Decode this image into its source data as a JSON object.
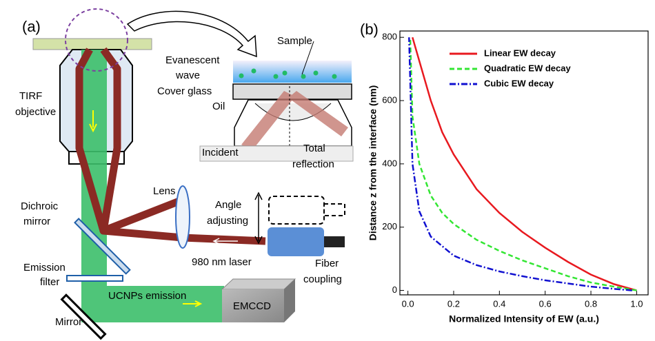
{
  "diagram": {
    "panel_label": "(a)",
    "labels": [
      "Sample",
      "Evanescent",
      "wave",
      "Cover glass",
      "Oil",
      "TIRF",
      "objective",
      "Incident",
      "Total",
      "reflection",
      "Lens",
      "Angle",
      "adjusting",
      "Dichroic",
      "mirror",
      "980 nm laser",
      "Fiber",
      "coupling",
      "Emission",
      "filter",
      "UCNPs emission",
      "EMCCD",
      "Mirror"
    ]
  },
  "chart_data": {
    "type": "line",
    "panel_label": "(b)",
    "x_label": "Normalized Intensity of EW (a.u.)",
    "y_label": "Distance z from the interface  (nm)",
    "xlim": [
      -0.035,
      1.05
    ],
    "ylim": [
      -14,
      820
    ],
    "xticks": [
      {
        "value": 0,
        "label": "0.0"
      },
      0.2,
      0.4,
      0.6,
      0.8,
      {
        "value": 1,
        "label": "1.0"
      }
    ],
    "yticks": [
      0,
      200,
      400,
      600,
      800
    ],
    "legend": "upper center",
    "series": [
      {
        "name": "Linear EW decay",
        "color": "#e8191f",
        "dash": "solid",
        "x": [
          1.0,
          0.9,
          0.8,
          0.7,
          0.6,
          0.5,
          0.4,
          0.3,
          0.2,
          0.15,
          0.1,
          0.06,
          0.02
        ],
        "values": [
          0,
          20,
          50,
          90,
          135,
          185,
          245,
          320,
          430,
          500,
          600,
          700,
          800
        ]
      },
      {
        "name": "Quadratic EW decay",
        "color": "#33e633",
        "dash": "dashed",
        "x": [
          1.0,
          0.9,
          0.8,
          0.7,
          0.6,
          0.5,
          0.4,
          0.3,
          0.2,
          0.15,
          0.1,
          0.05,
          0.02,
          0.01
        ],
        "values": [
          0,
          12,
          25,
          45,
          70,
          95,
          125,
          160,
          210,
          245,
          300,
          400,
          550,
          800
        ]
      },
      {
        "name": "Cubic EW decay",
        "color": "#1010d0",
        "dash": "dashdot",
        "x": [
          0.98,
          0.9,
          0.8,
          0.7,
          0.6,
          0.5,
          0.4,
          0.3,
          0.2,
          0.1,
          0.05,
          0.02,
          0.005
        ],
        "values": [
          0,
          5,
          12,
          22,
          32,
          45,
          60,
          80,
          110,
          170,
          250,
          400,
          800
        ]
      }
    ]
  }
}
